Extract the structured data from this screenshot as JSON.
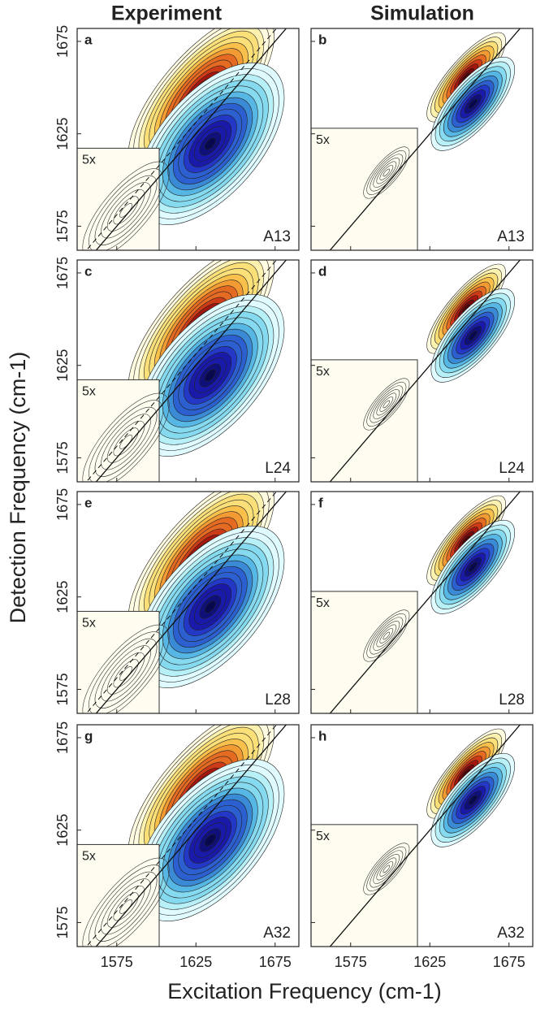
{
  "chart_data": {
    "type": "contour-grid",
    "column_titles": [
      "Experiment",
      "Simulation"
    ],
    "x_label": "Excitation Frequency (cm-1)",
    "y_label": "Detection Frequency (cm-1)",
    "xlim": [
      1550,
      1690
    ],
    "ylim": [
      1562,
      1682
    ],
    "xticks": [
      1575,
      1625,
      1675
    ],
    "yticks": [
      1575,
      1625,
      1675
    ],
    "panels": [
      {
        "letter": "a",
        "label": "A13",
        "annotation": "5x"
      },
      {
        "letter": "b",
        "label": "A13",
        "annotation": "5x"
      },
      {
        "letter": "c",
        "label": "L24",
        "annotation": "5x"
      },
      {
        "letter": "d",
        "label": "L24",
        "annotation": "5x"
      },
      {
        "letter": "e",
        "label": "L28",
        "annotation": "5x"
      },
      {
        "letter": "f",
        "label": "L28",
        "annotation": "5x"
      },
      {
        "letter": "g",
        "label": "A32",
        "annotation": "5x"
      },
      {
        "letter": "h",
        "label": "A32",
        "annotation": "5x"
      }
    ]
  }
}
